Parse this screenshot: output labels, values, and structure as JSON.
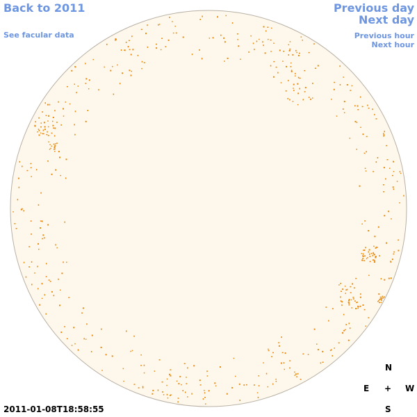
{
  "nav": {
    "back": "Back to 2011",
    "facular": "See facular data",
    "previous_day": "Previous day",
    "next_day": "Next day",
    "previous_hour": "Previous hour",
    "next_hour": "Next hour"
  },
  "timestamp": "2011-01-08T18:58:55",
  "compass": {
    "north": "N",
    "east": "E",
    "center": "+",
    "west": "W",
    "south": "S"
  }
}
